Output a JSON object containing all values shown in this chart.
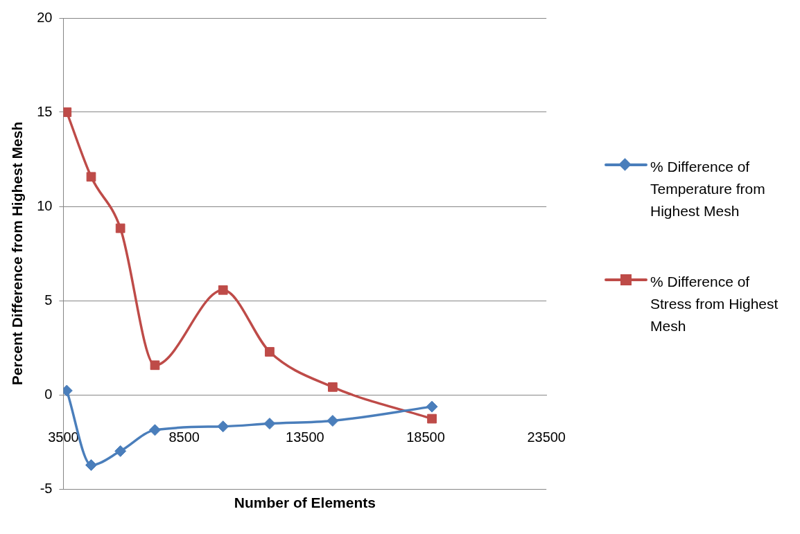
{
  "chart_data": {
    "type": "line",
    "xlabel": "Number of Elements",
    "ylabel": "Percent Difference from Highest Mesh",
    "x": [
      3640,
      4650,
      5860,
      7290,
      10110,
      12040,
      14650,
      18760
    ],
    "series": [
      {
        "name": "% Difference of Temperature from Highest Mesh",
        "color": "#4a7ebb",
        "marker": "diamond",
        "values": [
          0.22,
          -3.73,
          -2.99,
          -1.87,
          -1.68,
          -1.53,
          -1.38,
          -0.63
        ]
      },
      {
        "name": "% Difference of Stress from Highest Mesh",
        "color": "#be4b48",
        "marker": "square",
        "values": [
          15.0,
          11.57,
          8.84,
          1.57,
          5.56,
          2.28,
          0.41,
          -1.27
        ]
      }
    ],
    "xlim": [
      3500,
      23500
    ],
    "xticks": [
      3500,
      8500,
      13500,
      18500,
      23500
    ],
    "ylim": [
      -5,
      20
    ],
    "yticks": [
      -5,
      0,
      5,
      10,
      15,
      20
    ],
    "grid": "y",
    "legend": "right",
    "line_style": "solid"
  }
}
